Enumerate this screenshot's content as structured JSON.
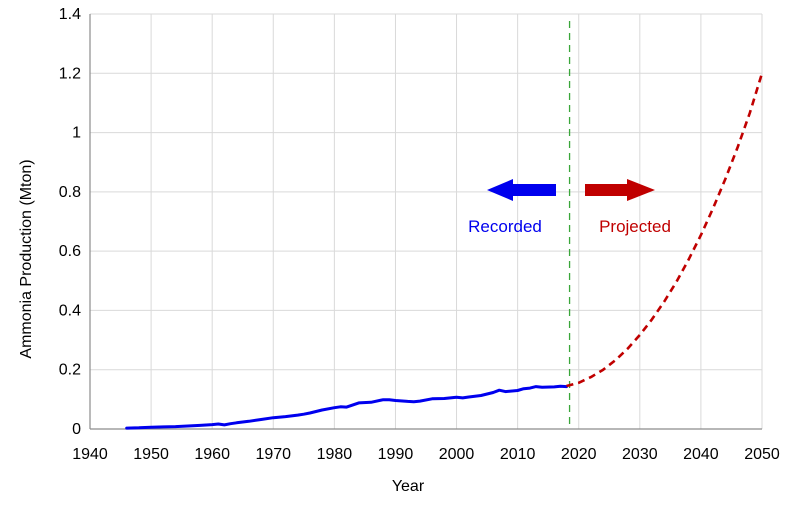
{
  "chart_data": {
    "type": "line",
    "title": "",
    "xlabel": "Year",
    "ylabel": "Ammonia Production (Mton)",
    "xlim": [
      1940,
      2050
    ],
    "ylim": [
      0,
      1.4
    ],
    "x_ticks": [
      1940,
      1950,
      1960,
      1970,
      1980,
      1990,
      2000,
      2010,
      2020,
      2030,
      2040,
      2050
    ],
    "y_ticks": [
      0,
      0.2,
      0.4,
      0.6,
      0.8,
      1,
      1.2,
      1.4
    ],
    "y_tick_labels": [
      "0",
      "0.2",
      "0.4",
      "0.6",
      "0.8",
      "1",
      "1.2",
      "1.4"
    ],
    "grid": true,
    "divider_year": 2018.5,
    "series": [
      {
        "name": "Recorded",
        "color": "#0000ee",
        "style": "solid",
        "x": [
          1946,
          1948,
          1950,
          1952,
          1954,
          1956,
          1958,
          1960,
          1961,
          1962,
          1963,
          1964,
          1966,
          1968,
          1970,
          1972,
          1974,
          1975,
          1976,
          1978,
          1980,
          1981,
          1982,
          1984,
          1986,
          1988,
          1989,
          1990,
          1992,
          1993,
          1994,
          1996,
          1998,
          2000,
          2001,
          2002,
          2004,
          2006,
          2007,
          2008,
          2010,
          2011,
          2012,
          2013,
          2014,
          2016,
          2017,
          2018
        ],
        "y": [
          0.003,
          0.004,
          0.006,
          0.007,
          0.008,
          0.01,
          0.012,
          0.015,
          0.017,
          0.014,
          0.018,
          0.021,
          0.026,
          0.032,
          0.038,
          0.042,
          0.047,
          0.05,
          0.054,
          0.064,
          0.072,
          0.075,
          0.074,
          0.088,
          0.09,
          0.099,
          0.099,
          0.096,
          0.093,
          0.092,
          0.094,
          0.102,
          0.103,
          0.107,
          0.105,
          0.108,
          0.113,
          0.123,
          0.131,
          0.126,
          0.13,
          0.136,
          0.138,
          0.143,
          0.141,
          0.142,
          0.144,
          0.143
        ]
      },
      {
        "name": "Projected",
        "color": "#c00000",
        "style": "dashed",
        "x": [
          2018,
          2020,
          2022,
          2024,
          2026,
          2028,
          2030,
          2032,
          2034,
          2036,
          2038,
          2040,
          2042,
          2044,
          2046,
          2048,
          2050
        ],
        "y": [
          0.145,
          0.156,
          0.175,
          0.2,
          0.232,
          0.271,
          0.317,
          0.37,
          0.43,
          0.497,
          0.572,
          0.654,
          0.745,
          0.843,
          0.95,
          1.066,
          1.2
        ]
      }
    ],
    "annotations": {
      "recorded_label": "Recorded",
      "projected_label": "Projected",
      "recorded_color": "#0000ee",
      "projected_color": "#c00000",
      "recorded_arrow_icon": "arrow-left-icon",
      "projected_arrow_icon": "arrow-right-icon"
    }
  }
}
